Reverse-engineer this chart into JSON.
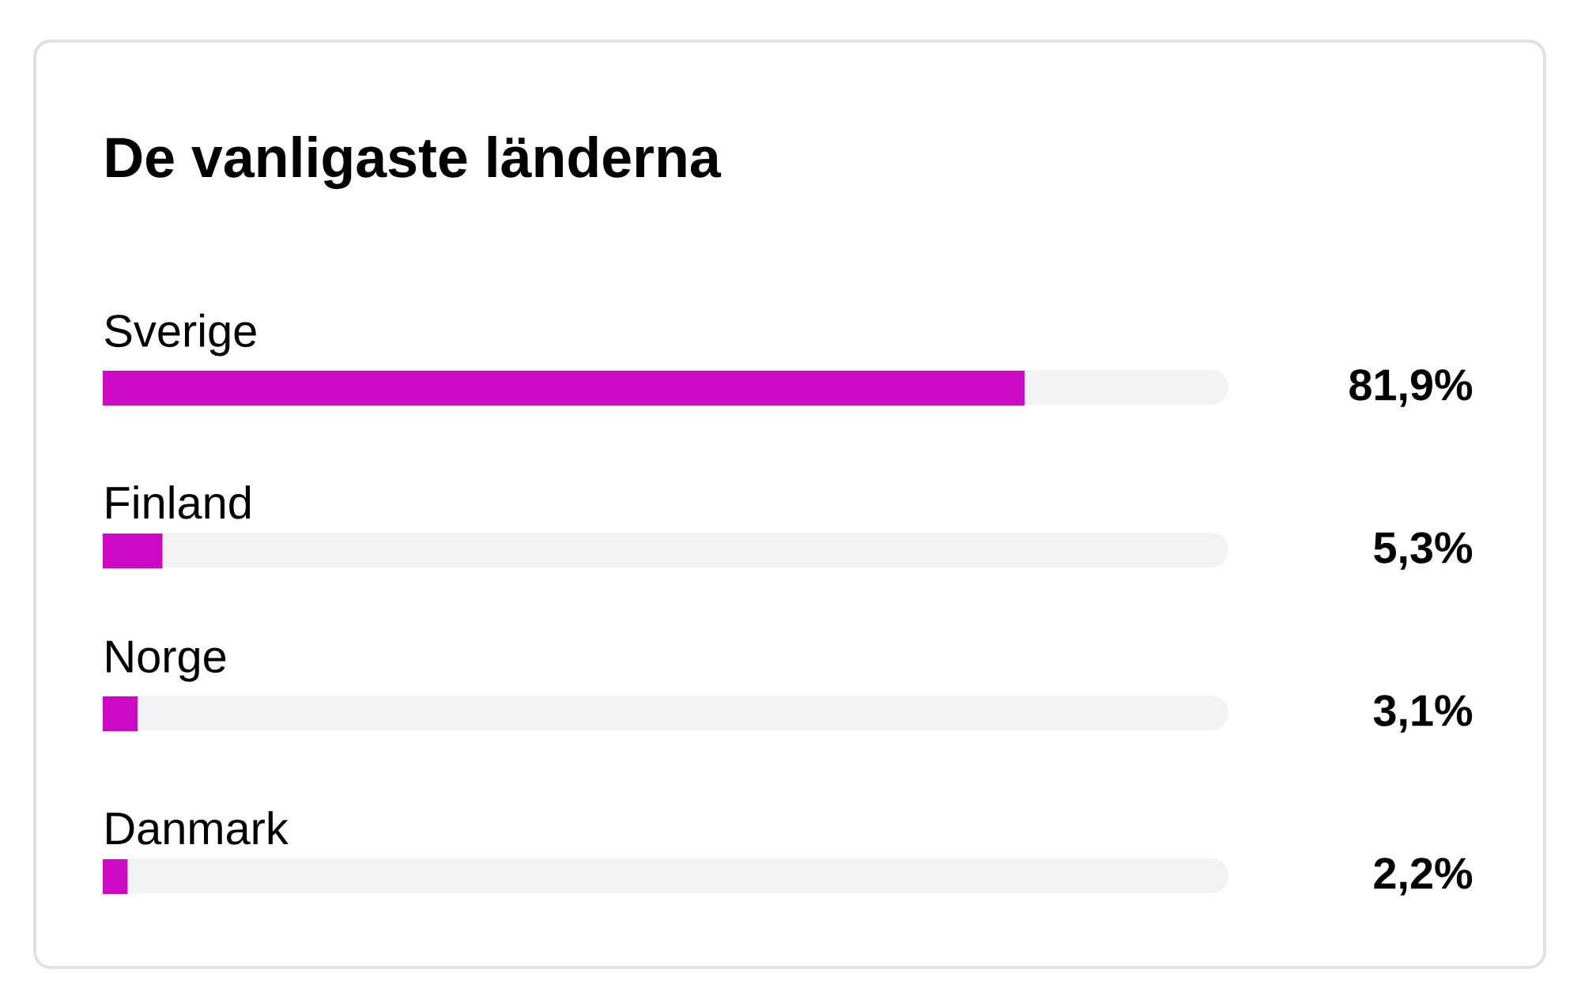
{
  "chart_data": {
    "type": "bar",
    "orientation": "horizontal",
    "title": "De vanligaste länderna",
    "categories": [
      "Sverige",
      "Finland",
      "Norge",
      "Danmark"
    ],
    "values": [
      81.9,
      5.3,
      3.1,
      2.2
    ],
    "value_labels": [
      "81,9%",
      "5,3%",
      "3,1%",
      "2,2%"
    ],
    "color": "#cc0ac6",
    "xlim": [
      0,
      100
    ],
    "tick_labels": "y"
  }
}
